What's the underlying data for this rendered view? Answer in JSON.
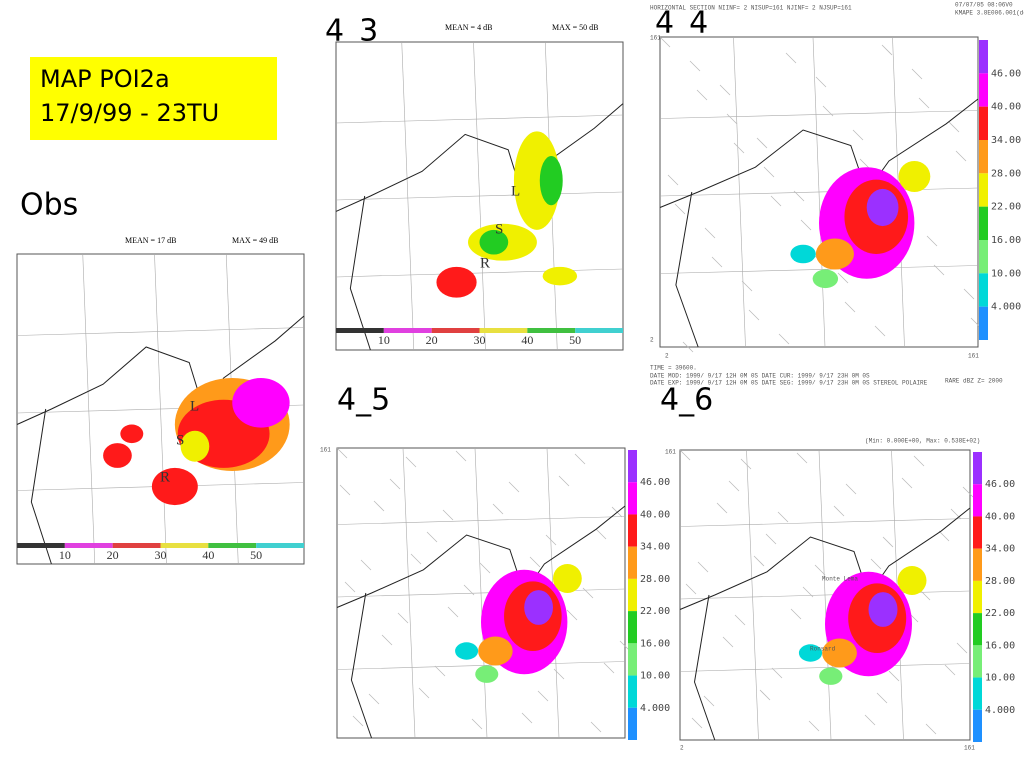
{
  "title_box": {
    "line1": "MAP POI2a",
    "line2": "17/9/99 - 23TU"
  },
  "obs": {
    "label": "Obs",
    "mean": "MEAN =  17 dB",
    "max": "MAX =  49 dB",
    "letters": [
      "L",
      "S",
      "R"
    ]
  },
  "panels": [
    {
      "label": "4_3",
      "mean": "MEAN =   4 dB",
      "max": "MAX =  50 dB",
      "letters": [
        "L",
        "S",
        "R"
      ]
    },
    {
      "label": "4_4",
      "header": [
        "HORIZONTAL SECTION NIINF=   2 NISUP=161 NJINF=   2 NJSUP=161",
        "07/07/05    08:06V0",
        "KMAPE 3.8E006.001(deg)"
      ],
      "footer": [
        "TIME =   39600.",
        "DATE MOD: 1999/ 9/17 12H 0M 0S   DATE CUR: 1999/ 9/17 23H 0M 0S",
        "DATE EXP: 1999/ 9/17 12H 0M 0S   DATE SEG: 1999/ 9/17 23H 0M 0S   STEREOL POLAIRE",
        "RARE dBZ   Z= 2000"
      ],
      "corners": [
        "161",
        "2",
        "2",
        "161"
      ]
    },
    {
      "label": "4_5",
      "corners": [
        "161"
      ]
    },
    {
      "label": "4_6",
      "header": [
        "(Min: 0.000E+00, Max: 0.538E+02)"
      ],
      "places": [
        "Monte Lema",
        "Ronsard"
      ],
      "corners": [
        "161",
        "2",
        "161"
      ]
    }
  ],
  "obs_scale": [
    "10",
    "20",
    "30",
    "40",
    "50"
  ],
  "model_scale": [
    "46.00",
    "40.00",
    "34.00",
    "28.00",
    "22.00",
    "16.00",
    "10.00",
    "4.000"
  ]
}
